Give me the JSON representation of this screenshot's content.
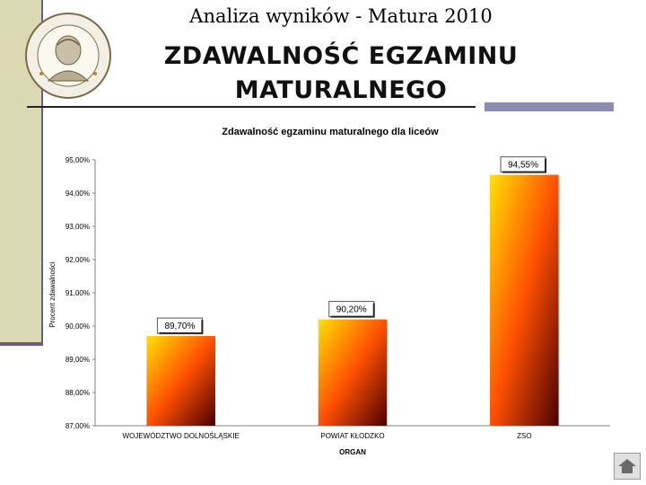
{
  "slide": {
    "title_top": "Analiza wyników  - Matura 2010",
    "title_main_line1": "ZDAWALNOŚĆ EGZAMINU",
    "title_main_line2": "MATURALNEGO"
  },
  "icons": {
    "seal": "school-seal-icon",
    "nav": "slide-nav-icon"
  },
  "colors": {
    "bar_light": "#ffe000",
    "bar_mid": "#ff5000",
    "bar_dark": "#4a0000",
    "accent": "#8c8cb0",
    "sidebar": "#d9d9b4"
  },
  "chart_data": {
    "type": "bar",
    "title": "Zdawalność egzaminu maturalnego dla liceów",
    "xlabel": "ORGAN",
    "ylabel": "Procent zdawalności",
    "categories": [
      "WOJEWÓDZTWO DOLNOŚLĄSKIE",
      "POWIAT KŁODZKO",
      "ZSO"
    ],
    "values": [
      89.7,
      90.2,
      94.55
    ],
    "data_labels": [
      "89,70%",
      "90,20%",
      "94,55%"
    ],
    "ylim": [
      87,
      95
    ],
    "yticks": [
      87,
      88,
      89,
      90,
      91,
      92,
      93,
      94,
      95
    ],
    "ytick_labels": [
      "87,00%",
      "88,00%",
      "89,00%",
      "90,00%",
      "91,00%",
      "92,00%",
      "93,00%",
      "94,00%",
      "95,00%"
    ],
    "grid": false,
    "legend": "none"
  }
}
